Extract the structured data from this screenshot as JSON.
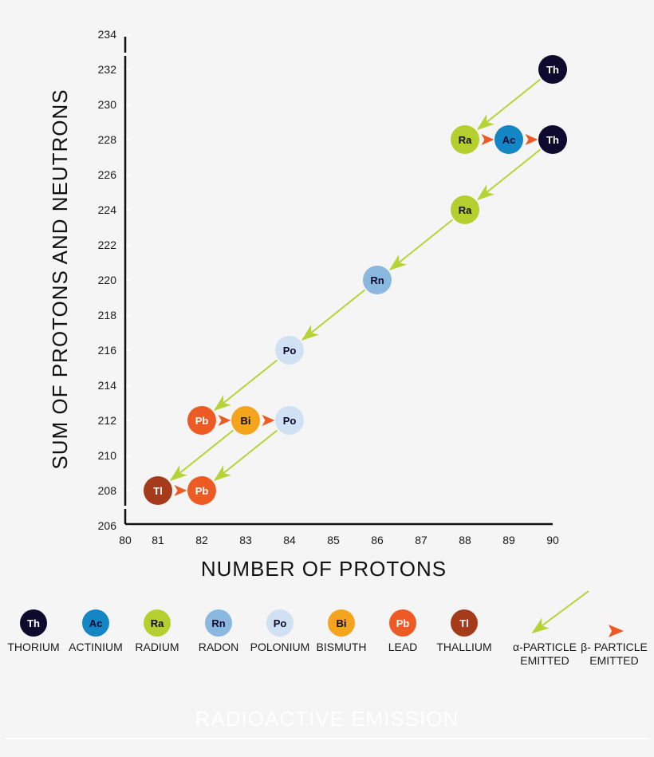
{
  "chart_data": {
    "type": "scatter",
    "title": "RADIOACTIVE EMISSION",
    "xlabel": "NUMBER OF PROTONS",
    "ylabel": "SUM OF PROTONS AND NEUTRONS",
    "xlim": [
      80,
      90
    ],
    "ylim": [
      206,
      234
    ],
    "x_ticks": [
      80,
      81,
      82,
      83,
      84,
      85,
      86,
      87,
      88,
      89,
      90
    ],
    "y_ticks": [
      206,
      208,
      210,
      212,
      214,
      216,
      218,
      220,
      222,
      224,
      226,
      228,
      230,
      232,
      234
    ],
    "grid": false,
    "legend_position": "bottom",
    "points": [
      {
        "id": "th232",
        "symbol": "Th",
        "element": "Thorium",
        "x": 90,
        "y": 232
      },
      {
        "id": "ra228",
        "symbol": "Ra",
        "element": "Radium",
        "x": 88,
        "y": 228
      },
      {
        "id": "ac228",
        "symbol": "Ac",
        "element": "Actinium",
        "x": 89,
        "y": 228
      },
      {
        "id": "th228",
        "symbol": "Th",
        "element": "Thorium",
        "x": 90,
        "y": 228
      },
      {
        "id": "ra224",
        "symbol": "Ra",
        "element": "Radium",
        "x": 88,
        "y": 224
      },
      {
        "id": "rn220",
        "symbol": "Rn",
        "element": "Radon",
        "x": 86,
        "y": 220
      },
      {
        "id": "po216",
        "symbol": "Po",
        "element": "Polonium",
        "x": 84,
        "y": 216
      },
      {
        "id": "pb212",
        "symbol": "Pb",
        "element": "Lead",
        "x": 82,
        "y": 212
      },
      {
        "id": "bi212",
        "symbol": "Bi",
        "element": "Bismuth",
        "x": 83,
        "y": 212
      },
      {
        "id": "po212",
        "symbol": "Po",
        "element": "Polonium",
        "x": 84,
        "y": 212
      },
      {
        "id": "tl208",
        "symbol": "Tl",
        "element": "Thallium",
        "x": 81,
        "y": 208
      },
      {
        "id": "pb208",
        "symbol": "Pb",
        "element": "Lead",
        "x": 82,
        "y": 208
      }
    ],
    "transitions": [
      {
        "from": "th232",
        "to": "ra228",
        "type": "alpha"
      },
      {
        "from": "ra228",
        "to": "ac228",
        "type": "beta"
      },
      {
        "from": "ac228",
        "to": "th228",
        "type": "beta"
      },
      {
        "from": "th228",
        "to": "ra224",
        "type": "alpha"
      },
      {
        "from": "ra224",
        "to": "rn220",
        "type": "alpha"
      },
      {
        "from": "rn220",
        "to": "po216",
        "type": "alpha"
      },
      {
        "from": "po216",
        "to": "pb212",
        "type": "alpha"
      },
      {
        "from": "pb212",
        "to": "bi212",
        "type": "beta"
      },
      {
        "from": "bi212",
        "to": "po212",
        "type": "beta"
      },
      {
        "from": "bi212",
        "to": "tl208",
        "type": "alpha"
      },
      {
        "from": "po212",
        "to": "pb208",
        "type": "alpha"
      },
      {
        "from": "tl208",
        "to": "pb208",
        "type": "beta"
      }
    ],
    "legend": {
      "elements": [
        {
          "symbol": "Th",
          "label": "THORIUM"
        },
        {
          "symbol": "Ac",
          "label": "ACTINIUM"
        },
        {
          "symbol": "Ra",
          "label": "RADIUM"
        },
        {
          "symbol": "Rn",
          "label": "RADON"
        },
        {
          "symbol": "Po",
          "label": "POLONIUM"
        },
        {
          "symbol": "Bi",
          "label": "BISMUTH"
        },
        {
          "symbol": "Pb",
          "label": "LEAD"
        },
        {
          "symbol": "Tl",
          "label": "THALLIUM"
        }
      ],
      "alpha": {
        "line1": "α-PARTICLE",
        "line2": "EMITTED"
      },
      "beta": {
        "line1": "β- PARTICLE",
        "line2": "EMITTED"
      }
    }
  },
  "colors": {
    "Th": {
      "fill": "#0d0a2e",
      "text": "#ffffff"
    },
    "Ac": {
      "fill": "#1486c6",
      "text": "#0d0a2e"
    },
    "Ra": {
      "fill": "#b5cf2e",
      "text": "#0d0a2e"
    },
    "Rn": {
      "fill": "#8ab8de",
      "text": "#0d0a2e"
    },
    "Po": {
      "fill": "#cfe1f2",
      "text": "#0d0a2e"
    },
    "Bi": {
      "fill": "#f5a41e",
      "text": "#0d0a2e"
    },
    "Pb": {
      "fill": "#ee5a24",
      "text": "#ffffff"
    },
    "Tl": {
      "fill": "#a63b1b",
      "text": "#ffffff"
    },
    "alpha": "#b5d334",
    "beta": "#ee5a24",
    "axis": "#111111",
    "background": "#f5f5f5"
  }
}
